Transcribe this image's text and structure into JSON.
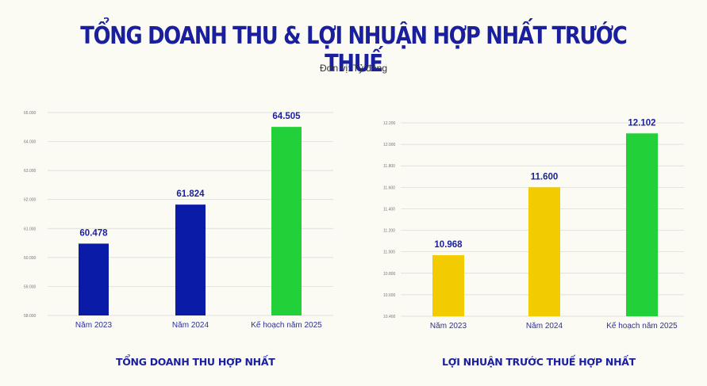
{
  "header": {
    "title": "TỔNG DOANH THU & LỢI NHUẬN HỢP NHẤT TRƯỚC THUẾ",
    "unit": "Đơn vị: Tỷ đồng"
  },
  "colors": {
    "primary": "#0a1ba8",
    "secondary": "#f2cc00",
    "plan": "#22d039",
    "grid": "#d7d7d7"
  },
  "chart_data": [
    {
      "type": "bar",
      "title": "TỔNG DOANH THU HỢP NHẤT",
      "categories": [
        "Năm 2023",
        "Năm 2024",
        "Kế hoạch năm 2025"
      ],
      "values": [
        60478,
        61824,
        64505
      ],
      "value_labels": [
        "60.478",
        "61.824",
        "64.505"
      ],
      "bar_colors": [
        "#0a1ba8",
        "#0a1ba8",
        "#22d039"
      ],
      "ylim": [
        58000,
        65000
      ],
      "yticks": [
        58000,
        59000,
        60000,
        61000,
        62000,
        63000,
        64000,
        65000
      ],
      "ytick_labels": [
        "58.000",
        "59.000",
        "60.000",
        "61.000",
        "62.000",
        "63.000",
        "64.000",
        "65.000"
      ],
      "grid": true
    },
    {
      "type": "bar",
      "title": "LỢI NHUẬN TRƯỚC THUẾ HỢP NHẤT",
      "categories": [
        "Năm 2023",
        "Năm 2024",
        "Kế hoạch năm 2025"
      ],
      "values": [
        10968,
        11600,
        12102
      ],
      "value_labels": [
        "10.968",
        "11.600",
        "12.102"
      ],
      "bar_colors": [
        "#f2cc00",
        "#f2cc00",
        "#22d039"
      ],
      "ylim": [
        10400,
        12200
      ],
      "yticks": [
        10400,
        10600,
        10800,
        11000,
        11200,
        11400,
        11600,
        11800,
        12000,
        12200
      ],
      "ytick_labels": [
        "10.400",
        "10.600",
        "10.800",
        "11.000",
        "11.200",
        "11.400",
        "11.600",
        "11.800",
        "12.000",
        "12.200"
      ],
      "grid": true
    }
  ]
}
